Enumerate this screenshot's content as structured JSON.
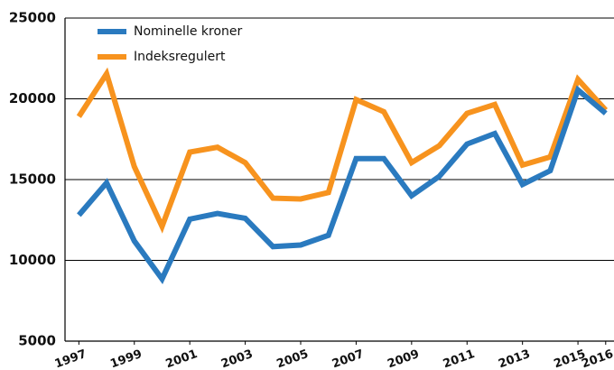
{
  "chart_data": {
    "type": "line",
    "x": [
      1997,
      1998,
      1999,
      2000,
      2001,
      2002,
      2003,
      2004,
      2005,
      2006,
      2007,
      2008,
      2009,
      2010,
      2011,
      2012,
      2013,
      2014,
      2015,
      2016
    ],
    "series": [
      {
        "name": "Nominelle kroner",
        "color": "#2a7abf",
        "values": [
          12800,
          14800,
          11200,
          8850,
          12550,
          12900,
          12600,
          10850,
          10950,
          11550,
          16300,
          16300,
          14000,
          15200,
          17200,
          17850,
          14700,
          15550,
          20550,
          19100
        ]
      },
      {
        "name": "Indeksregulert",
        "color": "#f7931e",
        "values": [
          18900,
          21550,
          15800,
          12100,
          16700,
          17000,
          16050,
          13850,
          13800,
          14200,
          19950,
          19200,
          16050,
          17100,
          19100,
          19650,
          15900,
          16400,
          21200,
          19300
        ]
      }
    ],
    "xlim": [
      1996.5,
      2016.3
    ],
    "xticks": [
      1997,
      1999,
      2001,
      2003,
      2005,
      2007,
      2009,
      2011,
      2013,
      2015,
      2016
    ],
    "ylim": [
      5000,
      25000
    ],
    "yticks": [
      5000,
      10000,
      15000,
      20000,
      25000
    ],
    "grid": true,
    "legend": "upper left"
  }
}
